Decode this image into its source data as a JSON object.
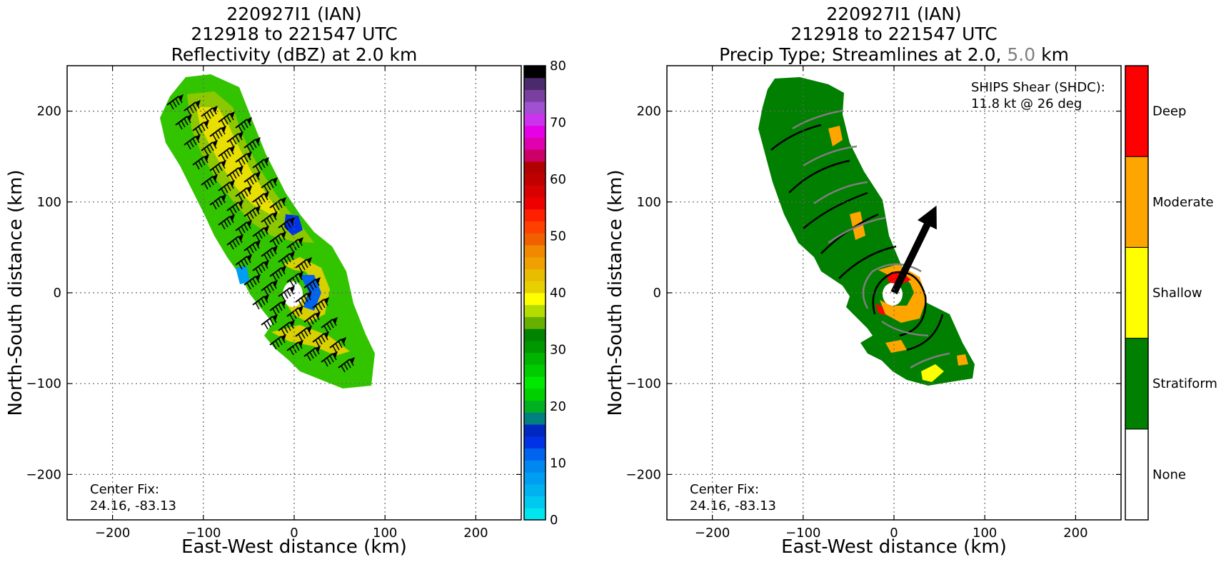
{
  "colors": {
    "reflectivity_scale": [
      "#00e5ee",
      "#00c9f0",
      "#00b2f0",
      "#009ef2",
      "#0088f0",
      "#0064ee",
      "#0032e6",
      "#0028c0",
      "#008080",
      "#00b020",
      "#00d000",
      "#00e800",
      "#00cc00",
      "#00b400",
      "#009800",
      "#008400",
      "#68b000",
      "#b4dc00",
      "#ffff00",
      "#e8d000",
      "#e8bc00",
      "#f0a000",
      "#f08800",
      "#f06000",
      "#ff4000",
      "#ff2000",
      "#ee0000",
      "#d80000",
      "#c00000",
      "#b00000",
      "#cc0066",
      "#e000b0",
      "#e600e6",
      "#cc33ee",
      "#a050d0",
      "#7a40a0",
      "#4a2a6a",
      "#000000"
    ],
    "precip_none": "#ffffff",
    "precip_stratiform": "#007f00",
    "precip_shallow": "#ffff00",
    "precip_moderate": "#ffa500",
    "precip_deep": "#ff0000",
    "streamline_low": "#000000",
    "streamline_high": "#7f7f7f",
    "shear_arrow": "#000000"
  },
  "chart_data": [
    {
      "type": "heatmap",
      "title_lines": [
        "220927I1 (IAN)",
        "212918 to 221547 UTC",
        "Reflectivity (dBZ) at 2.0 km"
      ],
      "xlabel": "East-West distance (km)",
      "ylabel": "North-South distance (km)",
      "xlim": [
        -250,
        250
      ],
      "ylim": [
        -250,
        250
      ],
      "xticks": [
        -200,
        -100,
        0,
        100,
        200
      ],
      "yticks": [
        -200,
        -100,
        0,
        100,
        200
      ],
      "tick_labels": [
        "−200",
        "−100",
        "0",
        "100",
        "200"
      ],
      "grid": true,
      "colorbar": {
        "range": [
          0,
          80
        ],
        "ticks": [
          0,
          10,
          20,
          30,
          40,
          50,
          60,
          70,
          80
        ]
      },
      "annotation": [
        "Center Fix:",
        "24.16, -83.13"
      ]
    },
    {
      "type": "heatmap",
      "title_lines": [
        "220927I1 (IAN)",
        "212918 to 221547 UTC"
      ],
      "title_line3": {
        "prefix": "Precip Type; Streamlines at 2.0, ",
        "highlight": "5.0",
        "suffix": " km"
      },
      "xlabel": "East-West distance (km)",
      "ylabel": "North-South distance (km)",
      "xlim": [
        -250,
        250
      ],
      "ylim": [
        -250,
        250
      ],
      "xticks": [
        -200,
        -100,
        0,
        100,
        200
      ],
      "yticks": [
        -200,
        -100,
        0,
        100,
        200
      ],
      "tick_labels": [
        "−200",
        "−100",
        "0",
        "100",
        "200"
      ],
      "grid": true,
      "categories": [
        "None",
        "Stratiform",
        "Shallow",
        "Moderate",
        "Deep"
      ],
      "shear_text": [
        "SHIPS Shear (SHDC):",
        "11.8 kt @ 26 deg"
      ],
      "shear_vector": {
        "speed_kt": 11.8,
        "direction_deg": 26
      },
      "annotation": [
        "Center Fix:",
        "24.16, -83.13"
      ]
    }
  ]
}
